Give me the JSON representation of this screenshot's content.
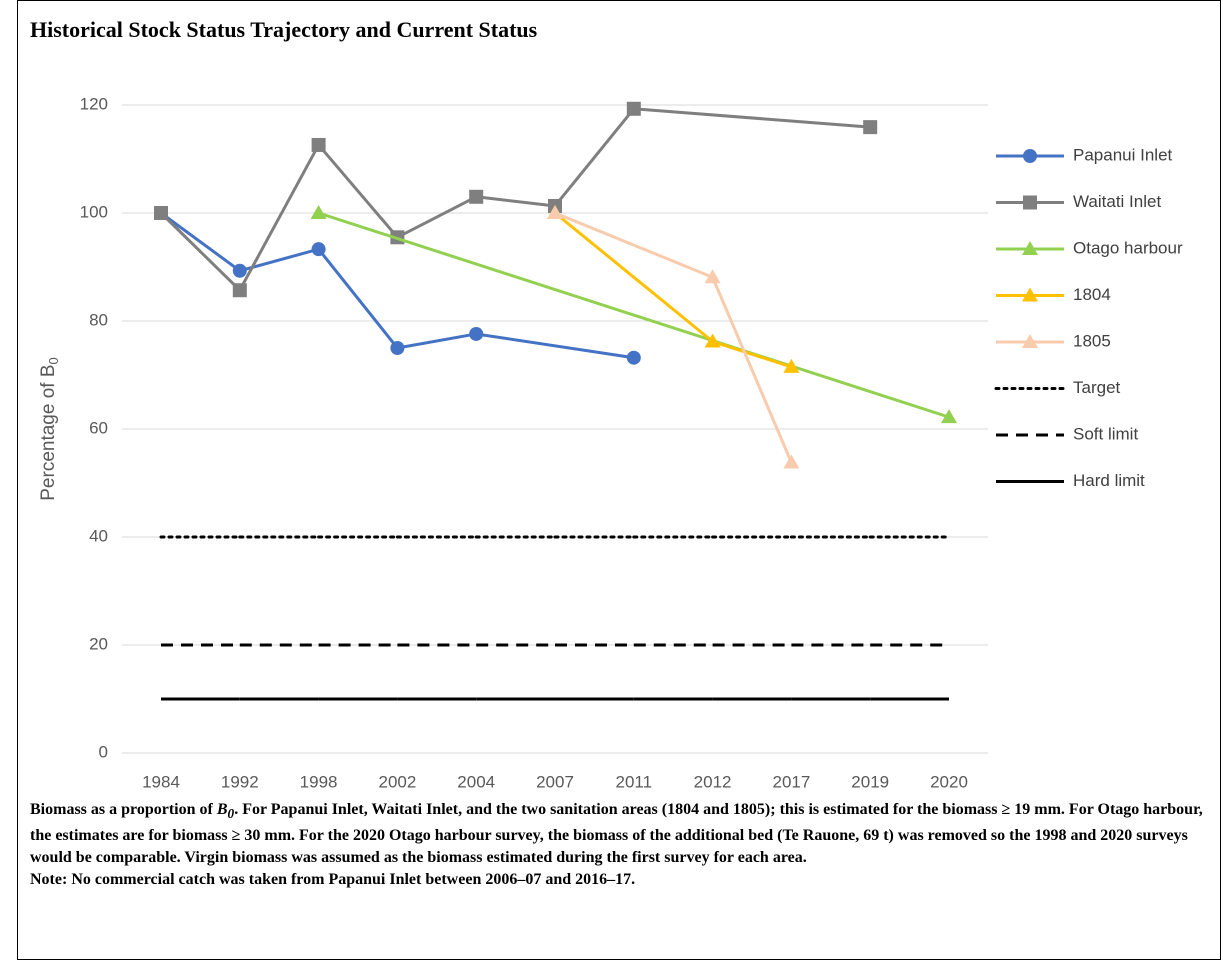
{
  "chart_data": {
    "type": "line",
    "title": "Historical Stock Status Trajectory and Current Status",
    "y_label": {
      "text": "Percentage of B",
      "subscript": "0"
    },
    "categories": [
      "1984",
      "1992",
      "1998",
      "2002",
      "2004",
      "2007",
      "2011",
      "2012",
      "2017",
      "2019",
      "2020"
    ],
    "ylim": [
      0,
      120
    ],
    "yticks": [
      0,
      20,
      40,
      60,
      80,
      100,
      120
    ],
    "grid": true,
    "series": [
      {
        "name": "Papanui Inlet",
        "color": "#4472c4",
        "marker": "circle",
        "dash": "solid",
        "values": [
          100,
          89.3,
          93.3,
          75,
          77.6,
          null,
          73.2,
          null,
          null,
          null,
          null
        ]
      },
      {
        "name": "Waitati Inlet",
        "color": "#7f7f7f",
        "marker": "square",
        "dash": "solid",
        "values": [
          100,
          85.7,
          112.6,
          95.5,
          103,
          101.3,
          119.3,
          null,
          null,
          115.9,
          null
        ]
      },
      {
        "name": "Otago harbour",
        "color": "#92d050",
        "marker": "triangle",
        "dash": "solid",
        "values": [
          null,
          null,
          100,
          null,
          null,
          null,
          null,
          null,
          null,
          null,
          62.2
        ]
      },
      {
        "name": "1804",
        "color": "#ffc000",
        "marker": "triangle",
        "dash": "solid",
        "values": [
          null,
          null,
          null,
          null,
          null,
          100,
          null,
          76.2,
          71.5,
          null,
          null
        ]
      },
      {
        "name": "1805",
        "color": "#f8cbad",
        "marker": "triangle",
        "dash": "solid",
        "values": [
          null,
          null,
          null,
          null,
          null,
          100,
          null,
          88.1,
          53.8,
          null,
          null
        ]
      },
      {
        "name": "Target",
        "color": "#000000",
        "marker": "none",
        "dash": "dotted",
        "values": [
          40,
          40,
          40,
          40,
          40,
          40,
          40,
          40,
          40,
          40,
          40
        ]
      },
      {
        "name": "Soft limit",
        "color": "#000000",
        "marker": "none",
        "dash": "dashed",
        "values": [
          20,
          20,
          20,
          20,
          20,
          20,
          20,
          20,
          20,
          20,
          20
        ]
      },
      {
        "name": "Hard limit",
        "color": "#000000",
        "marker": "none",
        "dash": "solid",
        "values": [
          10,
          10,
          10,
          10,
          10,
          10,
          10,
          10,
          10,
          10,
          10
        ]
      }
    ],
    "caption": [
      "Biomass as a proportion of ",
      "B",
      "0",
      ". For Papanui Inlet, Waitati Inlet, and the two sanitation areas (1804 and 1805); this is estimated for the biomass ≥ 19 mm. For Otago harbour, the estimates are for biomass ≥ 30 mm. For the 2020 Otago harbour survey, the biomass of the additional bed (Te Rauone, 69 t) was removed so the 1998 and 2020 surveys would be comparable. Virgin biomass was assumed as the biomass estimated during the first survey for each area.",
      "Note: No commercial catch was taken from Papanui Inlet between 2006–07 and 2016–17."
    ]
  }
}
